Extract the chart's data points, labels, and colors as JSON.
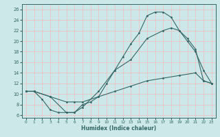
{
  "xlabel": "Humidex (Indice chaleur)",
  "xlim": [
    -0.5,
    23.5
  ],
  "ylim": [
    5.5,
    27.0
  ],
  "xticks": [
    0,
    1,
    2,
    3,
    4,
    5,
    6,
    7,
    8,
    9,
    10,
    11,
    12,
    13,
    14,
    15,
    16,
    17,
    18,
    19,
    20,
    21,
    22,
    23
  ],
  "yticks": [
    6,
    8,
    10,
    12,
    14,
    16,
    18,
    20,
    22,
    24,
    26
  ],
  "bg_color": "#cde8e8",
  "grid_color": "#e8c8c8",
  "line_color": "#336666",
  "curve1_x": [
    0,
    1,
    2,
    3,
    4,
    5,
    6,
    7,
    8,
    9,
    10,
    11,
    12,
    13,
    14,
    15,
    16,
    17,
    18,
    19,
    20,
    21,
    22,
    23
  ],
  "curve1_y": [
    10.5,
    10.5,
    9.0,
    7.0,
    6.5,
    6.5,
    6.5,
    8.0,
    8.5,
    9.5,
    12.0,
    14.5,
    17.0,
    19.5,
    21.5,
    24.8,
    25.5,
    25.5,
    24.5,
    22.0,
    20.5,
    18.5,
    12.5,
    12.0
  ],
  "curve2_x": [
    0,
    1,
    3,
    5,
    6,
    7,
    9,
    11,
    13,
    15,
    17,
    18,
    19,
    20,
    21,
    22,
    23
  ],
  "curve2_y": [
    10.5,
    10.5,
    9.5,
    6.5,
    6.5,
    7.5,
    10.5,
    14.5,
    16.5,
    20.5,
    22.0,
    22.5,
    22.0,
    20.0,
    18.0,
    14.5,
    12.0
  ],
  "curve3_x": [
    0,
    1,
    3,
    5,
    6,
    7,
    9,
    11,
    13,
    15,
    17,
    19,
    21,
    22,
    23
  ],
  "curve3_y": [
    10.5,
    10.5,
    9.5,
    8.5,
    8.5,
    8.5,
    9.5,
    10.5,
    11.5,
    12.5,
    13.0,
    13.5,
    14.0,
    12.5,
    12.0
  ]
}
